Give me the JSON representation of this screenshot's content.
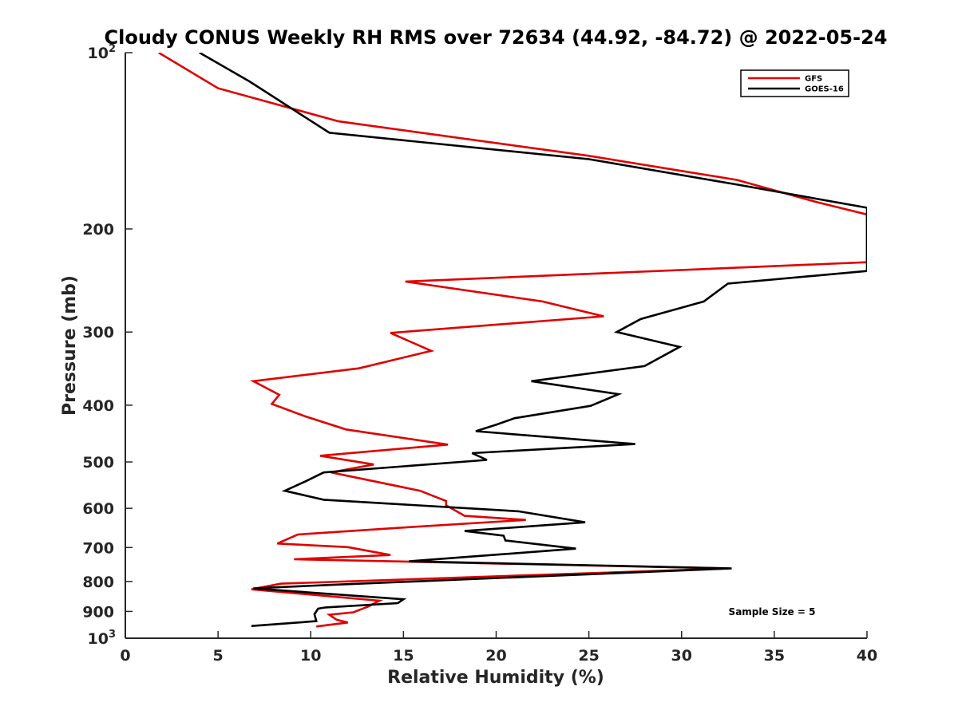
{
  "chart_data": {
    "type": "line",
    "title": "Cloudy CONUS Weekly RH RMS over 72634 (44.92, -84.72) @ 2022-05-24",
    "xlabel": "Relative Humidity (%)",
    "ylabel": "Pressure (mb)",
    "xlim": [
      0,
      40
    ],
    "ylim": [
      100,
      1000
    ],
    "y_scale": "log",
    "y_reversed": true,
    "x_ticks": [
      "0",
      "5",
      "10",
      "15",
      "20",
      "25",
      "30",
      "35",
      "40"
    ],
    "y_ticks": [
      {
        "value": 100,
        "base": "10",
        "exp": "2"
      },
      {
        "value": 200,
        "label": "200"
      },
      {
        "value": 300,
        "label": "300"
      },
      {
        "value": 400,
        "label": "400"
      },
      {
        "value": 500,
        "label": "500"
      },
      {
        "value": 600,
        "label": "600"
      },
      {
        "value": 700,
        "label": "700"
      },
      {
        "value": 800,
        "label": "800"
      },
      {
        "value": 900,
        "label": "900"
      },
      {
        "value": 1000,
        "base": "10",
        "exp": "3"
      }
    ],
    "grid": false,
    "legend_position": "top-right",
    "annotation": "Sample Size = 5",
    "series": [
      {
        "name": "GFS",
        "color": "#e00000",
        "points": [
          [
            1.8,
            100
          ],
          [
            5.0,
            115
          ],
          [
            11.5,
            131
          ],
          [
            25,
            150
          ],
          [
            33,
            165
          ],
          [
            37.3,
            180
          ],
          [
            40,
            189
          ],
          [
            40,
            228
          ],
          [
            15.1,
            246
          ],
          [
            22.5,
            266
          ],
          [
            25.8,
            282
          ],
          [
            14.3,
            301
          ],
          [
            16.5,
            323
          ],
          [
            12.6,
            346
          ],
          [
            6.9,
            364
          ],
          [
            8.3,
            384
          ],
          [
            7.9,
            398
          ],
          [
            9.7,
            418
          ],
          [
            11.9,
            440
          ],
          [
            17.4,
            467
          ],
          [
            10.5,
            488
          ],
          [
            13.4,
            505
          ],
          [
            11.1,
            521
          ],
          [
            15.9,
            560
          ],
          [
            17.3,
            583
          ],
          [
            17.3,
            593
          ],
          [
            18.3,
            618
          ],
          [
            21.6,
            628
          ],
          [
            14.7,
            648
          ],
          [
            9.3,
            665
          ],
          [
            8.2,
            689
          ],
          [
            12.0,
            699
          ],
          [
            14.3,
            721
          ],
          [
            9.1,
            733
          ],
          [
            32.6,
            760
          ],
          [
            8.4,
            807
          ],
          [
            6.8,
            825
          ],
          [
            13.7,
            863
          ],
          [
            13.1,
            883
          ],
          [
            12.3,
            903
          ],
          [
            11.0,
            912
          ],
          [
            11.4,
            930
          ],
          [
            12.0,
            940
          ],
          [
            10.3,
            955
          ]
        ]
      },
      {
        "name": "GOES-16",
        "color": "#000000",
        "points": [
          [
            4.0,
            100
          ],
          [
            6.7,
            112
          ],
          [
            11.0,
            137
          ],
          [
            25,
            152
          ],
          [
            33,
            168
          ],
          [
            40,
            184
          ],
          [
            40,
            236
          ],
          [
            32.5,
            248
          ],
          [
            31.2,
            266
          ],
          [
            27.8,
            285
          ],
          [
            26.5,
            300
          ],
          [
            29.9,
            318
          ],
          [
            28.0,
            343
          ],
          [
            21.9,
            364
          ],
          [
            26.6,
            383
          ],
          [
            25.1,
            401
          ],
          [
            21.0,
            421
          ],
          [
            20.0,
            432
          ],
          [
            18.9,
            443
          ],
          [
            27.5,
            466
          ],
          [
            18.7,
            483
          ],
          [
            19.5,
            496
          ],
          [
            10.7,
            521
          ],
          [
            9.7,
            540
          ],
          [
            8.6,
            560
          ],
          [
            10.7,
            580
          ],
          [
            21.2,
            607
          ],
          [
            24.8,
            634
          ],
          [
            18.3,
            656
          ],
          [
            20.4,
            668
          ],
          [
            20.5,
            681
          ],
          [
            24.3,
            703
          ],
          [
            15.3,
            739
          ],
          [
            32.7,
            760
          ],
          [
            11.4,
            810
          ],
          [
            6.9,
            822
          ],
          [
            15.0,
            858
          ],
          [
            14.7,
            871
          ],
          [
            10.8,
            886
          ],
          [
            10.4,
            890
          ],
          [
            10.2,
            910
          ],
          [
            10.3,
            935
          ],
          [
            6.8,
            953
          ]
        ]
      }
    ]
  }
}
